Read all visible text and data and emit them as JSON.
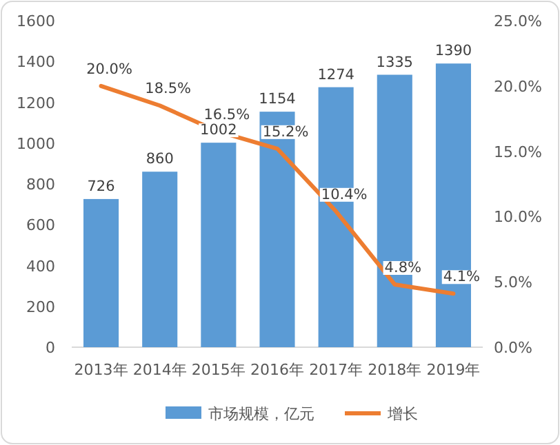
{
  "chart_data": {
    "type": "bar",
    "categories": [
      "2013年",
      "2014年",
      "2015年",
      "2016年",
      "2017年",
      "2018年",
      "2019年"
    ],
    "series": [
      {
        "name": "市场规模，亿元",
        "color": "#5b9bd5",
        "values": [
          726,
          860,
          1002,
          1154,
          1274,
          1335,
          1390
        ],
        "value_labels": [
          "726",
          "860",
          "1002",
          "1154",
          "1274",
          "1335",
          "1390"
        ]
      },
      {
        "name": "增长",
        "type": "line",
        "axis": "y2",
        "color": "#ed7d31",
        "values": [
          20.0,
          18.5,
          16.5,
          15.2,
          10.4,
          4.8,
          4.1
        ],
        "value_labels": [
          "20.0%",
          "18.5%",
          "16.5%",
          "15.2%",
          "10.4%",
          "4.8%",
          "4.1%"
        ]
      }
    ],
    "ylim": [
      0,
      1600
    ],
    "yticks": [
      0,
      200,
      400,
      600,
      800,
      1000,
      1200,
      1400,
      1600
    ],
    "y2lim": [
      0,
      25
    ],
    "y2ticks": [
      {
        "value": 0,
        "label": "0.0%"
      },
      {
        "value": 5,
        "label": "5.0%"
      },
      {
        "value": 10,
        "label": "10.0%"
      },
      {
        "value": 15,
        "label": "15.0%"
      },
      {
        "value": 20,
        "label": "20.0%"
      },
      {
        "value": 25,
        "label": "25.0%"
      }
    ],
    "legend": "bottom"
  }
}
